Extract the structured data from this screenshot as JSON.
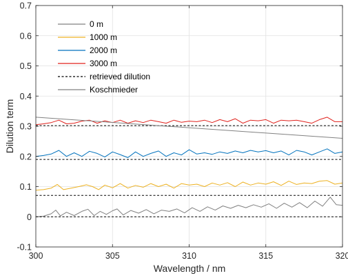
{
  "chart_data": {
    "type": "line",
    "title": "",
    "xlabel": "Wavelength / nm",
    "ylabel": "Dilution term",
    "xlim": [
      300,
      320
    ],
    "ylim": [
      -0.1,
      0.7
    ],
    "x_ticks": [
      "300",
      "305",
      "310",
      "315",
      "320"
    ],
    "y_ticks": [
      "-0.1",
      "0",
      "0.1",
      "0.2",
      "0.3",
      "0.4",
      "0.5",
      "0.6",
      "0.7"
    ],
    "grid": true,
    "legend_position": "top-left",
    "series": [
      {
        "name": "0 m",
        "color": "#808080",
        "style": "solid",
        "x": [
          300.0,
          300.5,
          301.0,
          301.3,
          301.6,
          302.0,
          302.5,
          303.0,
          303.4,
          303.8,
          304.2,
          304.6,
          305.0,
          305.3,
          305.7,
          306.2,
          306.7,
          307.2,
          307.7,
          308.2,
          308.7,
          309.2,
          309.7,
          310.2,
          310.7,
          311.2,
          311.7,
          312.2,
          312.7,
          313.2,
          313.7,
          314.2,
          314.7,
          315.2,
          315.7,
          316.2,
          316.7,
          317.2,
          317.7,
          318.2,
          318.7,
          319.2,
          319.6,
          320.0
        ],
        "y": [
          0.0,
          0.002,
          0.01,
          0.022,
          0.003,
          0.015,
          0.004,
          0.018,
          0.025,
          0.004,
          0.018,
          0.008,
          0.02,
          0.026,
          0.006,
          0.021,
          0.012,
          0.024,
          0.01,
          0.022,
          0.018,
          0.026,
          0.013,
          0.03,
          0.018,
          0.033,
          0.022,
          0.036,
          0.028,
          0.038,
          0.03,
          0.04,
          0.032,
          0.043,
          0.028,
          0.045,
          0.032,
          0.047,
          0.03,
          0.052,
          0.035,
          0.065,
          0.04,
          0.038
        ]
      },
      {
        "name": "1000 m",
        "color": "#EDB120",
        "style": "solid",
        "x": [
          300.0,
          300.5,
          301.0,
          301.4,
          301.8,
          302.3,
          302.8,
          303.3,
          303.7,
          304.1,
          304.5,
          305.0,
          305.5,
          306.0,
          306.5,
          307.0,
          307.5,
          308.0,
          308.5,
          309.0,
          309.5,
          310.0,
          310.5,
          311.0,
          311.5,
          312.0,
          312.5,
          313.0,
          313.5,
          314.0,
          314.5,
          315.0,
          315.5,
          316.0,
          316.5,
          317.0,
          317.5,
          318.0,
          318.5,
          319.0,
          319.5,
          320.0
        ],
        "y": [
          0.088,
          0.09,
          0.095,
          0.107,
          0.09,
          0.095,
          0.1,
          0.106,
          0.1,
          0.09,
          0.105,
          0.096,
          0.11,
          0.095,
          0.104,
          0.098,
          0.11,
          0.1,
          0.108,
          0.095,
          0.11,
          0.105,
          0.108,
          0.1,
          0.112,
          0.105,
          0.113,
          0.1,
          0.115,
          0.105,
          0.112,
          0.108,
          0.116,
          0.104,
          0.118,
          0.107,
          0.112,
          0.11,
          0.118,
          0.12,
          0.108,
          0.112
        ]
      },
      {
        "name": "2000 m",
        "color": "#0072BD",
        "style": "solid",
        "x": [
          300.0,
          300.5,
          301.0,
          301.5,
          302.0,
          302.5,
          303.0,
          303.5,
          304.0,
          304.5,
          305.0,
          305.5,
          306.0,
          306.5,
          307.0,
          307.5,
          308.0,
          308.5,
          309.0,
          309.5,
          310.0,
          310.5,
          311.0,
          311.5,
          312.0,
          312.5,
          313.0,
          313.5,
          314.0,
          314.5,
          315.0,
          315.5,
          316.0,
          316.5,
          317.0,
          317.5,
          318.0,
          318.5,
          319.0,
          319.5,
          320.0
        ],
        "y": [
          0.2,
          0.203,
          0.208,
          0.22,
          0.2,
          0.212,
          0.2,
          0.217,
          0.21,
          0.198,
          0.215,
          0.206,
          0.196,
          0.215,
          0.2,
          0.21,
          0.218,
          0.2,
          0.212,
          0.205,
          0.222,
          0.208,
          0.212,
          0.207,
          0.215,
          0.21,
          0.218,
          0.212,
          0.22,
          0.215,
          0.219,
          0.212,
          0.218,
          0.205,
          0.22,
          0.215,
          0.205,
          0.215,
          0.225,
          0.21,
          0.215
        ]
      },
      {
        "name": "3000 m",
        "color": "#E0201B",
        "style": "solid",
        "x": [
          300.0,
          300.5,
          301.0,
          301.5,
          302.0,
          302.5,
          303.0,
          303.5,
          304.0,
          304.5,
          305.0,
          305.5,
          306.0,
          306.5,
          307.0,
          307.5,
          308.0,
          308.5,
          309.0,
          309.5,
          310.0,
          310.5,
          311.0,
          311.5,
          312.0,
          312.5,
          313.0,
          313.5,
          314.0,
          314.5,
          315.0,
          315.5,
          316.0,
          316.5,
          317.0,
          317.5,
          318.0,
          318.5,
          319.0,
          319.5,
          320.0
        ],
        "y": [
          0.305,
          0.308,
          0.312,
          0.32,
          0.308,
          0.31,
          0.317,
          0.32,
          0.31,
          0.318,
          0.312,
          0.32,
          0.31,
          0.318,
          0.312,
          0.32,
          0.315,
          0.31,
          0.32,
          0.313,
          0.317,
          0.315,
          0.32,
          0.312,
          0.322,
          0.315,
          0.325,
          0.31,
          0.32,
          0.318,
          0.322,
          0.31,
          0.32,
          0.318,
          0.32,
          0.315,
          0.31,
          0.322,
          0.33,
          0.315,
          0.315
        ]
      },
      {
        "name": "retrieved dilution",
        "color": "#000000",
        "style": "dashed",
        "levels": [
          0.0,
          0.071,
          0.19,
          0.302
        ]
      },
      {
        "name": "Koschmieder",
        "color": "#808080",
        "style": "solid",
        "x": [
          300,
          320
        ],
        "y": [
          0.33,
          0.26
        ]
      }
    ]
  }
}
